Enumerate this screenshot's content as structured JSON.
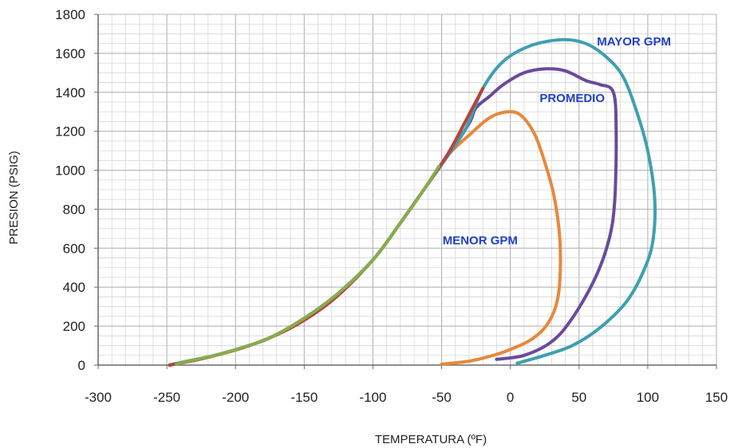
{
  "chart_data": {
    "type": "line",
    "title": "",
    "xlabel": "TEMPERATURA (ºF)",
    "ylabel": "PRESION (PSIG)",
    "xlim": [
      -300,
      150
    ],
    "ylim": [
      0,
      1800
    ],
    "x_ticks": [
      -300,
      -250,
      -200,
      -150,
      -100,
      -50,
      0,
      50,
      100,
      150
    ],
    "y_ticks": [
      0,
      200,
      400,
      600,
      800,
      1000,
      1200,
      1400,
      1600,
      1800
    ],
    "x_tick_labels": [
      "-300",
      "-250",
      "-200",
      "-150",
      "-100",
      "-50",
      "0",
      "50",
      "100",
      "150"
    ],
    "y_tick_labels": [
      "0",
      "200",
      "400",
      "600",
      "800",
      "1000",
      "1200",
      "1400",
      "1600",
      "1800"
    ],
    "grid": true,
    "annotations": [
      {
        "text": "MAYOR GPM",
        "x": 90,
        "y": 1640,
        "color": "#1f3fc8"
      },
      {
        "text": "PROMEDIO",
        "x": 45,
        "y": 1350,
        "color": "#1f3fc8"
      },
      {
        "text": "MENOR GPM",
        "x": -22,
        "y": 620,
        "color": "#1f3fc8"
      }
    ],
    "series": [
      {
        "name": "MENOR GPM",
        "color": "#e8883a",
        "x": [
          -248,
          -235,
          -215,
          -195,
          -175,
          -150,
          -125,
          -100,
          -80,
          -62,
          -45,
          -30,
          -15,
          -2,
          8,
          18,
          26,
          32,
          36,
          36,
          33,
          26,
          15,
          0,
          -15,
          -30,
          -50
        ],
        "y": [
          0,
          20,
          50,
          90,
          140,
          240,
          370,
          540,
          730,
          910,
          1080,
          1180,
          1270,
          1300,
          1280,
          1180,
          1020,
          860,
          650,
          430,
          300,
          200,
          130,
          80,
          45,
          20,
          5
        ]
      },
      {
        "name": "PROMEDIO",
        "color": "#6a4a9c",
        "x": [
          -248,
          -235,
          -215,
          -195,
          -175,
          -150,
          -125,
          -100,
          -80,
          -62,
          -45,
          -30,
          -25,
          -15,
          -5,
          10,
          25,
          40,
          55,
          65,
          75,
          77,
          76,
          72,
          62,
          45,
          30,
          10,
          -10
        ],
        "y": [
          0,
          20,
          50,
          90,
          140,
          240,
          370,
          540,
          730,
          910,
          1080,
          1240,
          1320,
          1380,
          1440,
          1500,
          1520,
          1510,
          1460,
          1440,
          1400,
          1200,
          850,
          650,
          450,
          240,
          120,
          50,
          30
        ]
      },
      {
        "name": "MAYOR GPM",
        "color": "#3ea0b0",
        "x": [
          -248,
          -235,
          -215,
          -195,
          -175,
          -150,
          -125,
          -100,
          -80,
          -62,
          -45,
          -32,
          -20,
          -5,
          15,
          38,
          55,
          70,
          82,
          92,
          100,
          105,
          104,
          98,
          85,
          65,
          45,
          25,
          5
        ],
        "y": [
          0,
          20,
          50,
          90,
          140,
          240,
          370,
          540,
          730,
          910,
          1080,
          1220,
          1420,
          1560,
          1640,
          1670,
          1650,
          1580,
          1480,
          1300,
          1100,
          860,
          650,
          500,
          330,
          190,
          100,
          50,
          10
        ]
      },
      {
        "name": "",
        "color": "#b8423a",
        "x": [
          -248,
          -220,
          -190,
          -160,
          -130,
          -100,
          -80,
          -62,
          -45,
          -32,
          -20
        ],
        "y": [
          0,
          40,
          100,
          190,
          330,
          540,
          730,
          910,
          1090,
          1260,
          1420
        ]
      },
      {
        "name": "",
        "color": "#86ad4e",
        "x": [
          -243,
          -235,
          -215,
          -195,
          -175,
          -150,
          -125,
          -100,
          -80,
          -62,
          -52
        ],
        "y": [
          5,
          20,
          50,
          90,
          140,
          240,
          370,
          540,
          730,
          910,
          1020
        ]
      }
    ]
  }
}
